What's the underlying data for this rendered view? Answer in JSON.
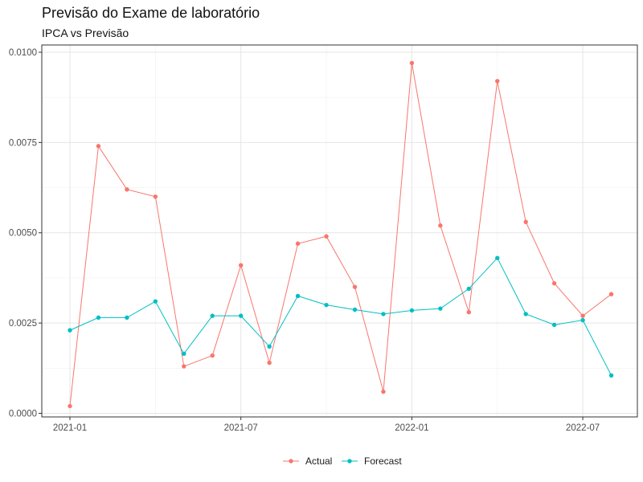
{
  "chart_data": {
    "type": "line",
    "title": "Previsão do Exame de laboratório",
    "subtitle": "IPCA vs Previsão",
    "xlabel": "",
    "ylabel": "",
    "x": [
      "2021-01",
      "2021-02",
      "2021-03",
      "2021-04",
      "2021-05",
      "2021-06",
      "2021-07",
      "2021-08",
      "2021-09",
      "2021-10",
      "2021-11",
      "2021-12",
      "2022-01",
      "2022-02",
      "2022-03",
      "2022-04",
      "2022-05",
      "2022-06",
      "2022-07",
      "2022-08"
    ],
    "x_ticks": [
      "2021-01",
      "2021-07",
      "2022-01",
      "2022-07"
    ],
    "y_ticks": [
      "0.0000",
      "0.0025",
      "0.0050",
      "0.0075",
      "0.0100"
    ],
    "ylim": [
      -0.0001,
      0.0102
    ],
    "grid": true,
    "legend_position": "bottom",
    "series": [
      {
        "name": "Actual",
        "color": "#F8766D",
        "values": [
          0.0002,
          0.0074,
          0.0062,
          0.006,
          0.0013,
          0.0016,
          0.0041,
          0.0014,
          0.0047,
          0.0049,
          0.0035,
          0.0006,
          0.0097,
          0.0052,
          0.0028,
          0.0092,
          0.0053,
          0.0036,
          0.0027,
          0.0033
        ]
      },
      {
        "name": "Forecast",
        "color": "#00BFC4",
        "values": [
          0.0023,
          0.00265,
          0.00265,
          0.0031,
          0.00165,
          0.0027,
          0.0027,
          0.00185,
          0.00325,
          0.003,
          0.00287,
          0.00275,
          0.00285,
          0.0029,
          0.00345,
          0.0043,
          0.00275,
          0.00245,
          0.00258,
          0.00105
        ]
      }
    ]
  }
}
